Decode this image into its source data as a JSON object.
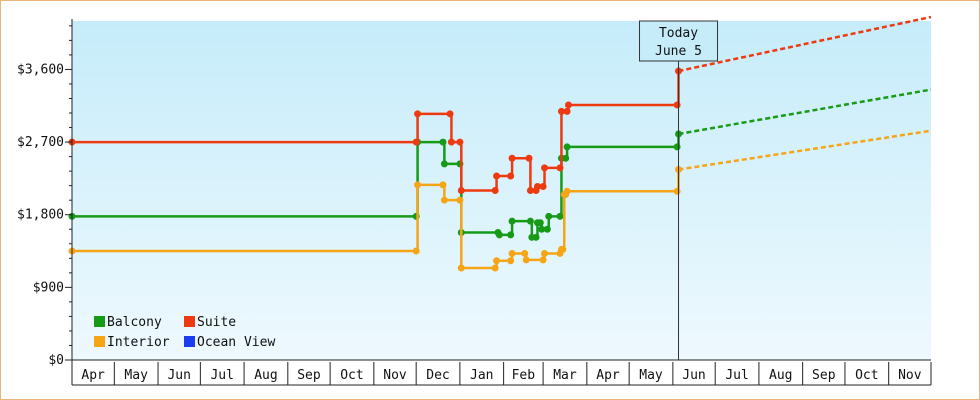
{
  "chart_data": {
    "type": "line",
    "subtype": "step",
    "x_axis": {
      "type": "date",
      "start": "2024-04-01",
      "end": "2025-12-01",
      "ticks": [
        "Apr",
        "May",
        "Jun",
        "Jul",
        "Aug",
        "Sep",
        "Oct",
        "Nov",
        "Dec",
        "Jan",
        "Feb",
        "Mar",
        "Apr",
        "May",
        "Jun",
        "Jul",
        "Aug",
        "Sep",
        "Oct",
        "Nov"
      ]
    },
    "y_axis": {
      "min": 0,
      "max": 4200,
      "ticks": [
        0,
        900,
        1800,
        2700,
        3600
      ],
      "tick_labels": [
        "$0",
        "$900",
        "$1,800",
        "$2,700",
        "$3,600"
      ]
    },
    "today": {
      "date": "2025-06-05",
      "label_line1": "Today",
      "label_line2": "June 5"
    },
    "legend_position": "bottom-left",
    "background_gradient": {
      "top": "#c6ecfa",
      "bottom": "#eef9fe"
    },
    "series": [
      {
        "name": "Balcony",
        "color": "#179b17",
        "points": [
          [
            "2024-04-01",
            1780
          ],
          [
            "2024-12-01",
            1780
          ],
          [
            "2024-12-02",
            2700
          ],
          [
            "2024-12-20",
            2700
          ],
          [
            "2024-12-21",
            2430
          ],
          [
            "2025-01-01",
            2430
          ],
          [
            "2025-01-02",
            1580
          ],
          [
            "2025-01-28",
            1580
          ],
          [
            "2025-01-29",
            1550
          ],
          [
            "2025-02-06",
            1550
          ],
          [
            "2025-02-07",
            1720
          ],
          [
            "2025-02-20",
            1720
          ],
          [
            "2025-02-21",
            1520
          ],
          [
            "2025-02-24",
            1520
          ],
          [
            "2025-02-25",
            1700
          ],
          [
            "2025-02-27",
            1700
          ],
          [
            "2025-02-28",
            1620
          ],
          [
            "2025-03-04",
            1620
          ],
          [
            "2025-03-05",
            1780
          ],
          [
            "2025-03-13",
            1780
          ],
          [
            "2025-03-14",
            2500
          ],
          [
            "2025-03-17",
            2500
          ],
          [
            "2025-03-18",
            2640
          ],
          [
            "2025-06-04",
            2640
          ],
          [
            "2025-06-05",
            2800
          ]
        ],
        "forecast": [
          [
            "2025-06-05",
            2800
          ],
          [
            "2025-12-01",
            3350
          ]
        ]
      },
      {
        "name": "Suite",
        "color": "#ee3a10",
        "points": [
          [
            "2024-04-01",
            2700
          ],
          [
            "2024-12-01",
            2700
          ],
          [
            "2024-12-02",
            3050
          ],
          [
            "2024-12-25",
            3050
          ],
          [
            "2024-12-26",
            2700
          ],
          [
            "2025-01-01",
            2700
          ],
          [
            "2025-01-02",
            2100
          ],
          [
            "2025-01-26",
            2100
          ],
          [
            "2025-01-27",
            2280
          ],
          [
            "2025-02-06",
            2280
          ],
          [
            "2025-02-07",
            2500
          ],
          [
            "2025-02-19",
            2500
          ],
          [
            "2025-02-20",
            2100
          ],
          [
            "2025-02-24",
            2100
          ],
          [
            "2025-02-25",
            2150
          ],
          [
            "2025-03-01",
            2150
          ],
          [
            "2025-03-02",
            2380
          ],
          [
            "2025-03-13",
            2380
          ],
          [
            "2025-03-14",
            3080
          ],
          [
            "2025-03-18",
            3080
          ],
          [
            "2025-03-19",
            3160
          ],
          [
            "2025-06-04",
            3160
          ],
          [
            "2025-06-05",
            3580
          ]
        ],
        "forecast": [
          [
            "2025-06-05",
            3580
          ],
          [
            "2025-12-01",
            4300
          ]
        ]
      },
      {
        "name": "Interior",
        "color": "#f5a516",
        "points": [
          [
            "2024-04-01",
            1350
          ],
          [
            "2024-12-01",
            1350
          ],
          [
            "2024-12-02",
            2170
          ],
          [
            "2024-12-20",
            2170
          ],
          [
            "2024-12-21",
            1980
          ],
          [
            "2025-01-01",
            1980
          ],
          [
            "2025-01-02",
            1140
          ],
          [
            "2025-01-26",
            1140
          ],
          [
            "2025-01-27",
            1230
          ],
          [
            "2025-02-06",
            1230
          ],
          [
            "2025-02-07",
            1320
          ],
          [
            "2025-02-16",
            1320
          ],
          [
            "2025-02-17",
            1240
          ],
          [
            "2025-03-01",
            1240
          ],
          [
            "2025-03-02",
            1320
          ],
          [
            "2025-03-13",
            1320
          ],
          [
            "2025-03-14",
            1370
          ],
          [
            "2025-03-15",
            1370
          ],
          [
            "2025-03-16",
            2050
          ],
          [
            "2025-03-17",
            2050
          ],
          [
            "2025-03-18",
            2090
          ],
          [
            "2025-06-04",
            2090
          ],
          [
            "2025-06-05",
            2360
          ]
        ],
        "forecast": [
          [
            "2025-06-05",
            2360
          ],
          [
            "2025-12-01",
            2840
          ]
        ]
      },
      {
        "name": "Ocean View",
        "color": "#1a3df0",
        "points": [],
        "forecast": []
      }
    ],
    "legend": [
      {
        "name": "Balcony",
        "color": "#179b17"
      },
      {
        "name": "Suite",
        "color": "#ee3a10"
      },
      {
        "name": "Interior",
        "color": "#f5a516"
      },
      {
        "name": "Ocean View",
        "color": "#1a3df0"
      }
    ]
  }
}
